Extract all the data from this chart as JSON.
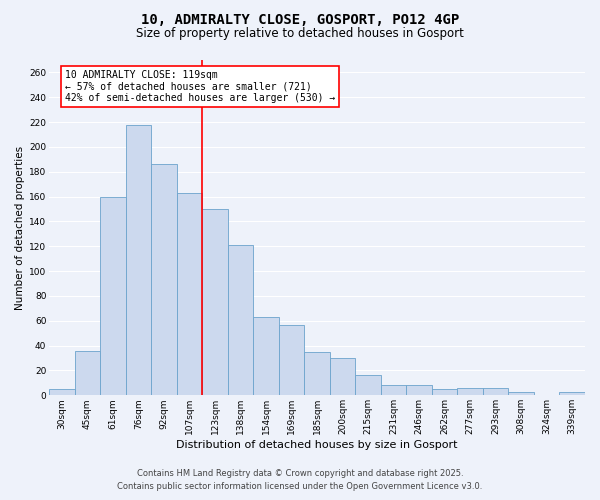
{
  "title": "10, ADMIRALTY CLOSE, GOSPORT, PO12 4GP",
  "subtitle": "Size of property relative to detached houses in Gosport",
  "xlabel": "Distribution of detached houses by size in Gosport",
  "ylabel": "Number of detached properties",
  "categories": [
    "30sqm",
    "45sqm",
    "61sqm",
    "76sqm",
    "92sqm",
    "107sqm",
    "123sqm",
    "138sqm",
    "154sqm",
    "169sqm",
    "185sqm",
    "200sqm",
    "215sqm",
    "231sqm",
    "246sqm",
    "262sqm",
    "277sqm",
    "293sqm",
    "308sqm",
    "324sqm",
    "339sqm"
  ],
  "values": [
    5,
    36,
    160,
    218,
    186,
    163,
    150,
    121,
    63,
    57,
    35,
    30,
    16,
    8,
    8,
    5,
    6,
    6,
    3,
    0,
    3
  ],
  "bar_color": "#ccd9ee",
  "bar_edge_color": "#6ba3cc",
  "reference_line_index": 6,
  "reference_line_color": "red",
  "annotation_text": "10 ADMIRALTY CLOSE: 119sqm\n← 57% of detached houses are smaller (721)\n42% of semi-detached houses are larger (530) →",
  "annotation_box_color": "white",
  "annotation_box_edge_color": "red",
  "ylim": [
    0,
    270
  ],
  "yticks": [
    0,
    20,
    40,
    60,
    80,
    100,
    120,
    140,
    160,
    180,
    200,
    220,
    240,
    260
  ],
  "footer_line1": "Contains HM Land Registry data © Crown copyright and database right 2025.",
  "footer_line2": "Contains public sector information licensed under the Open Government Licence v3.0.",
  "background_color": "#eef2fa",
  "grid_color": "white",
  "title_fontsize": 10,
  "subtitle_fontsize": 8.5,
  "xlabel_fontsize": 8,
  "ylabel_fontsize": 7.5,
  "tick_fontsize": 6.5,
  "annotation_fontsize": 7,
  "footer_fontsize": 6
}
